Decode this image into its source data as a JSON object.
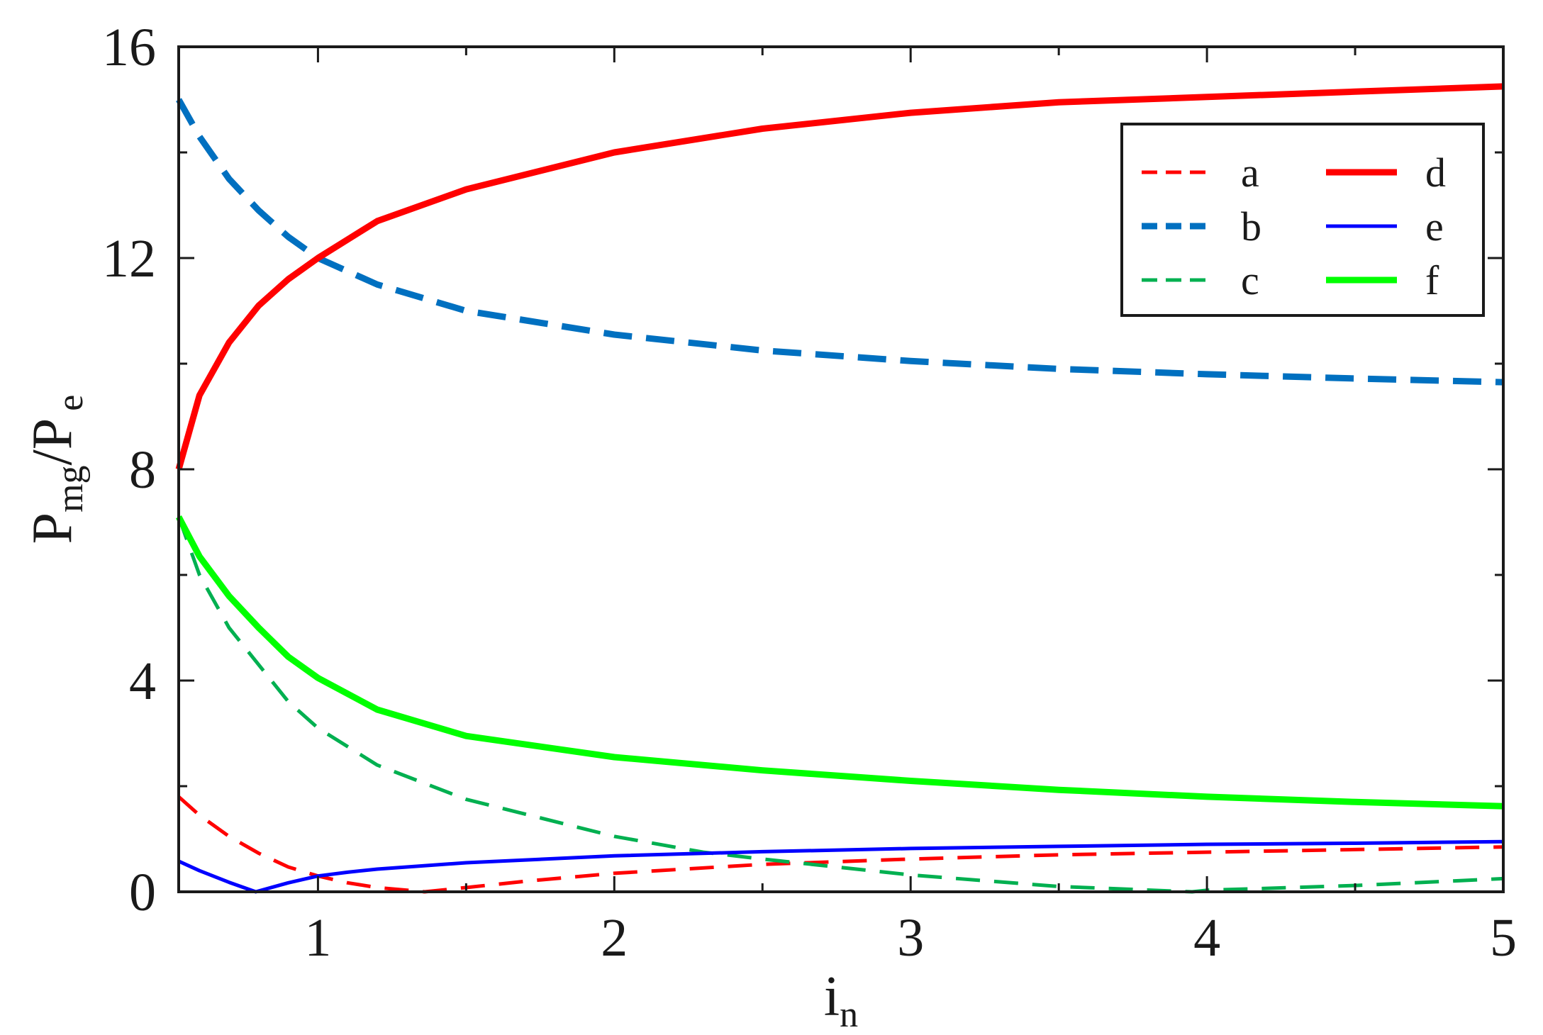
{
  "chart_data": {
    "type": "line",
    "title": "",
    "xlabel": {
      "main": "i",
      "sub": "n"
    },
    "ylabel": {
      "p1": "P",
      "sub1": "mg",
      "slash": "/",
      "p2": "P",
      "sub2": "e"
    },
    "xlim": [
      0.53,
      5
    ],
    "ylim": [
      0,
      16
    ],
    "x_ticks": [
      1,
      2,
      3,
      4,
      5
    ],
    "x_tick_labels": [
      "1",
      "2",
      "3",
      "4",
      "5"
    ],
    "x_minor_ticks": [
      1.5,
      2.5,
      3.5,
      4.5
    ],
    "y_ticks": [
      0,
      4,
      8,
      12,
      16
    ],
    "y_tick_labels": [
      "0",
      "4",
      "8",
      "12",
      "16"
    ],
    "y_minor_ticks": [
      2,
      6,
      10,
      14
    ],
    "grid": false,
    "legend_position": "top-right",
    "legend_columns": 2,
    "series": [
      {
        "name": "a",
        "color": "#ff0000",
        "style": "dashed",
        "width": "thin",
        "x": [
          0.53,
          0.6,
          0.7,
          0.8,
          0.9,
          1.0,
          1.1,
          1.2,
          1.3,
          1.36,
          1.5,
          1.7,
          2.0,
          2.5,
          3.0,
          3.5,
          4.0,
          4.5,
          5.0
        ],
        "y": [
          1.8,
          1.45,
          1.05,
          0.73,
          0.47,
          0.3,
          0.17,
          0.08,
          0.03,
          0.0,
          0.08,
          0.2,
          0.35,
          0.52,
          0.62,
          0.7,
          0.75,
          0.8,
          0.85
        ]
      },
      {
        "name": "b",
        "color": "#0070c0",
        "style": "dashed",
        "width": "thick",
        "x": [
          0.53,
          0.6,
          0.7,
          0.8,
          0.9,
          1.0,
          1.2,
          1.5,
          2.0,
          2.5,
          3.0,
          3.5,
          4.0,
          4.5,
          5.0
        ],
        "y": [
          15.0,
          14.3,
          13.5,
          12.9,
          12.4,
          12.0,
          11.5,
          11.0,
          10.55,
          10.25,
          10.05,
          9.9,
          9.8,
          9.72,
          9.65
        ]
      },
      {
        "name": "c",
        "color": "#00b050",
        "style": "dashed",
        "width": "thin",
        "x": [
          0.53,
          0.6,
          0.7,
          0.8,
          0.9,
          1.0,
          1.2,
          1.5,
          2.0,
          2.3,
          2.5,
          3.0,
          3.5,
          3.95,
          4.0,
          4.5,
          5.0
        ],
        "y": [
          7.1,
          6.0,
          5.0,
          4.3,
          3.6,
          3.1,
          2.4,
          1.75,
          1.05,
          0.75,
          0.62,
          0.32,
          0.1,
          0.0,
          0.03,
          0.12,
          0.25
        ]
      },
      {
        "name": "d",
        "color": "#ff0000",
        "style": "solid",
        "width": "thick",
        "x": [
          0.53,
          0.6,
          0.7,
          0.8,
          0.9,
          1.0,
          1.1,
          1.2,
          1.5,
          2.0,
          2.5,
          3.0,
          3.5,
          4.0,
          4.5,
          5.0
        ],
        "y": [
          8.0,
          9.4,
          10.4,
          11.1,
          11.6,
          12.0,
          12.35,
          12.7,
          13.3,
          14.0,
          14.45,
          14.75,
          14.95,
          15.05,
          15.15,
          15.25
        ]
      },
      {
        "name": "e",
        "color": "#0000ff",
        "style": "solid",
        "width": "thin",
        "x": [
          0.53,
          0.6,
          0.7,
          0.79,
          0.9,
          1.0,
          1.1,
          1.2,
          1.5,
          2.0,
          2.5,
          3.0,
          3.5,
          4.0,
          4.5,
          5.0
        ],
        "y": [
          0.58,
          0.4,
          0.18,
          0.0,
          0.17,
          0.3,
          0.37,
          0.43,
          0.55,
          0.68,
          0.76,
          0.82,
          0.86,
          0.9,
          0.92,
          0.95
        ]
      },
      {
        "name": "f",
        "color": "#00ff00",
        "style": "solid",
        "width": "thick",
        "x": [
          0.53,
          0.6,
          0.7,
          0.8,
          0.9,
          1.0,
          1.2,
          1.5,
          2.0,
          2.5,
          3.0,
          3.5,
          4.0,
          4.5,
          5.0
        ],
        "y": [
          7.1,
          6.35,
          5.6,
          5.0,
          4.45,
          4.05,
          3.45,
          2.95,
          2.55,
          2.3,
          2.1,
          1.93,
          1.8,
          1.7,
          1.62
        ]
      }
    ]
  }
}
